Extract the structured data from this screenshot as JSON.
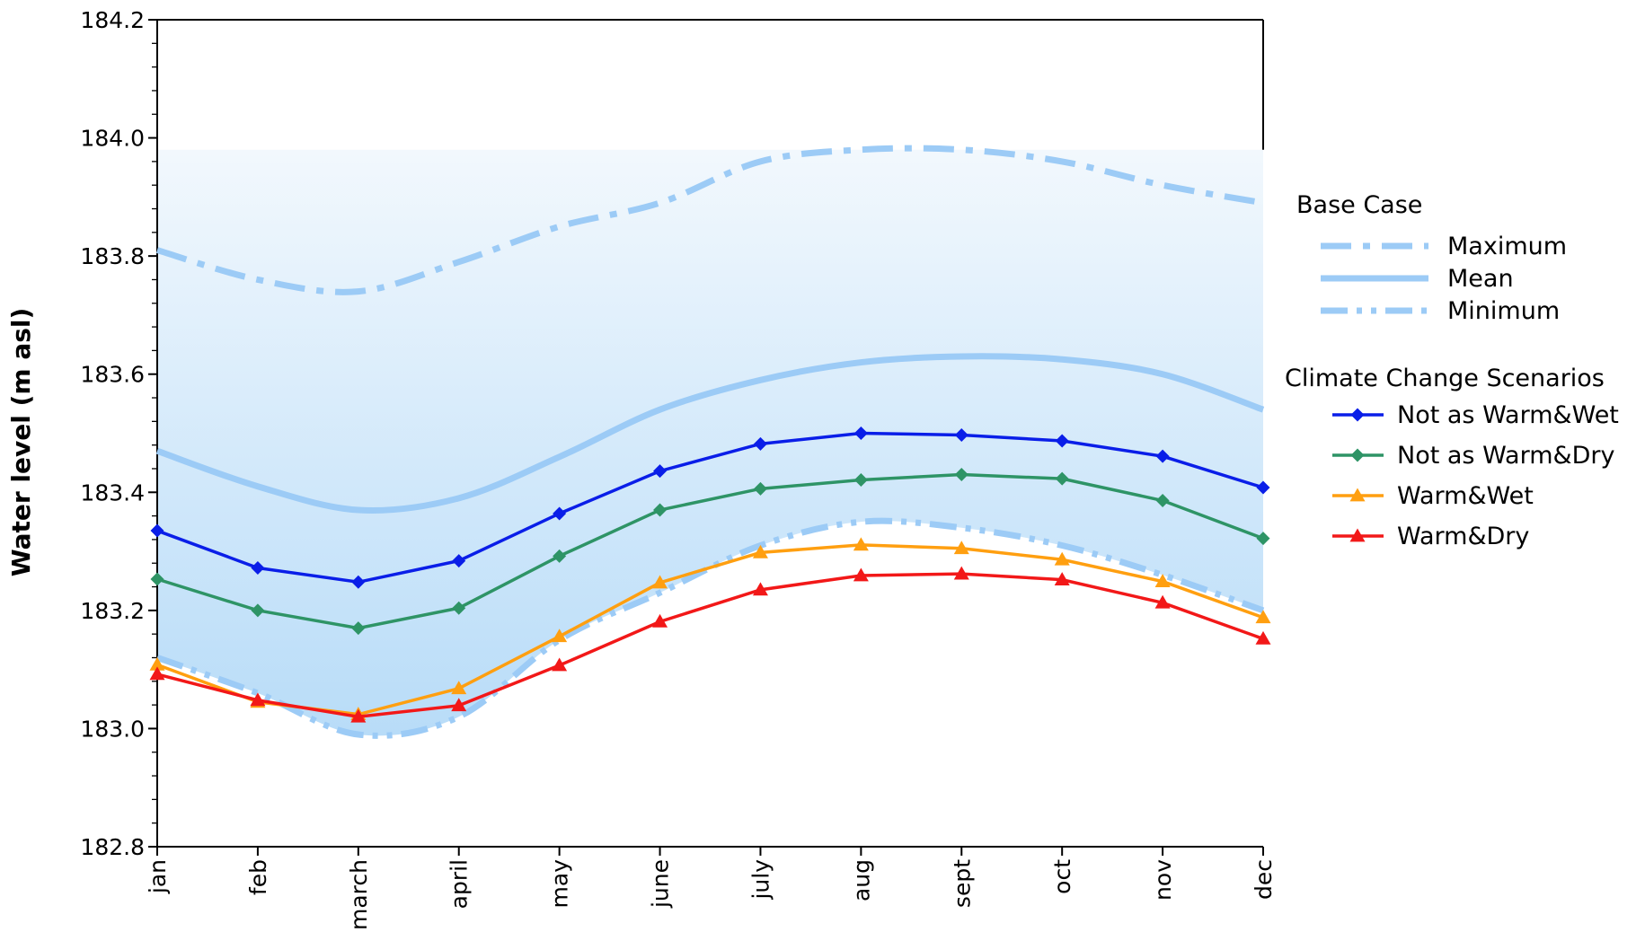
{
  "chart_data": {
    "type": "line",
    "title": "",
    "xlabel": "",
    "ylabel": "Water level (m asl)",
    "ylim": [
      182.8,
      184.2
    ],
    "yticks": [
      "182.8",
      "183.0",
      "183.2",
      "183.4",
      "183.6",
      "183.8",
      "184.0",
      "184.2"
    ],
    "categories": [
      "jan",
      "feb",
      "march",
      "april",
      "may",
      "june",
      "july",
      "aug",
      "sept",
      "oct",
      "nov",
      "dec"
    ],
    "band": {
      "name": "",
      "upper": 183.98,
      "lower_follows": "Minimum",
      "color_top": "#f2f8fd",
      "color_bottom": "#b8dcf8"
    },
    "legend": {
      "position": "right",
      "base_case_title": "Base Case",
      "scenarios_title": "Climate Change Scenarios"
    },
    "base_case": [
      {
        "name": "Maximum",
        "style": "dash-dot",
        "color": "#9ccbf6",
        "values": [
          183.81,
          183.76,
          183.74,
          183.79,
          183.85,
          183.89,
          183.96,
          183.98,
          183.98,
          183.96,
          183.92,
          183.89
        ]
      },
      {
        "name": "Mean",
        "style": "solid",
        "color": "#9ccbf6",
        "values": [
          183.47,
          183.41,
          183.37,
          183.39,
          183.46,
          183.54,
          183.59,
          183.62,
          183.63,
          183.625,
          183.6,
          183.54
        ]
      },
      {
        "name": "Minimum",
        "style": "dash-dot-dot",
        "color": "#9ccbf6",
        "values": [
          183.12,
          183.06,
          182.99,
          183.02,
          183.15,
          183.23,
          183.31,
          183.35,
          183.34,
          183.31,
          183.26,
          183.2
        ]
      }
    ],
    "series": [
      {
        "name": "Not as Warm&Wet",
        "color": "#0a1ee8",
        "marker": "diamond",
        "values": [
          183.335,
          183.272,
          183.248,
          183.284,
          183.364,
          183.436,
          183.482,
          183.5,
          183.497,
          183.487,
          183.461,
          183.408
        ]
      },
      {
        "name": "Not as Warm&Dry",
        "color": "#2e9466",
        "marker": "diamond",
        "values": [
          183.253,
          183.2,
          183.17,
          183.204,
          183.292,
          183.37,
          183.406,
          183.421,
          183.43,
          183.423,
          183.386,
          183.322
        ]
      },
      {
        "name": "Warm&Wet",
        "color": "#ff9f10",
        "marker": "triangle",
        "values": [
          183.108,
          183.045,
          183.024,
          183.068,
          183.156,
          183.247,
          183.298,
          183.311,
          183.305,
          183.286,
          183.249,
          183.188
        ]
      },
      {
        "name": "Warm&Dry",
        "color": "#f21818",
        "marker": "triangle",
        "values": [
          183.092,
          183.048,
          183.02,
          183.039,
          183.107,
          183.181,
          183.235,
          183.259,
          183.262,
          183.252,
          183.213,
          183.152
        ]
      }
    ]
  }
}
